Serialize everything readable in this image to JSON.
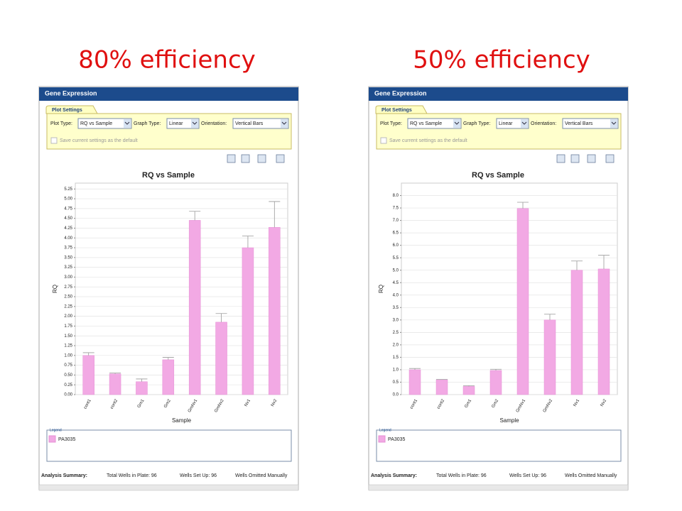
{
  "headings": [
    "80% efficiency",
    "50% efficiency"
  ],
  "panels": [
    {
      "window_title": "Gene Expression",
      "tab": "Plot Settings",
      "plot_type_label": "Plot Type:",
      "plot_type": "RQ vs Sample",
      "graph_type_label": "Graph Type:",
      "graph_type": "Linear",
      "orientation_label": "Orientation:",
      "orientation": "Vertical Bars",
      "save_default": "Save current settings as the default",
      "legend_title": "Legend",
      "summary": [
        "Analysis Summary:",
        "Total Wells in Plate: 96",
        "Wells Set Up: 96",
        "Wells Omitted Manually"
      ]
    },
    {
      "window_title": "Gene Expression",
      "tab": "Plot Settings",
      "plot_type_label": "Plot Type:",
      "plot_type": "RQ vs Sample",
      "graph_type_label": "Graph Type:",
      "graph_type": "Linear",
      "orientation_label": "Orientation:",
      "orientation": "Vertical Bars",
      "save_default": "Save current settings as the default",
      "legend_title": "Legend",
      "summary": [
        "Analysis Summary:",
        "Total Wells in Plate: 96",
        "Wells Set Up: 96",
        "Wells Omitted Manually"
      ]
    }
  ],
  "chart_data": [
    {
      "type": "bar",
      "title": "RQ vs Sample",
      "x_label": "Sample",
      "y_label": "RQ",
      "categories": [
        "cont1",
        "cont2",
        "Gm1",
        "Gm2",
        "GmNv1",
        "GmNv2",
        "Nv1",
        "Nv2"
      ],
      "series": [
        {
          "name": "PA3035",
          "color": "#f2a9e4",
          "values": [
            1.0,
            0.53,
            0.33,
            0.89,
            4.45,
            1.85,
            3.75,
            4.27
          ],
          "errors": [
            0.07,
            0.02,
            0.07,
            0.06,
            0.23,
            0.22,
            0.3,
            0.66
          ]
        }
      ],
      "ylim": [
        0,
        5.4
      ],
      "yticks": [
        {
          "value": 0,
          "label": "0.00"
        },
        {
          "value": 0.25,
          "label": "0.25"
        },
        {
          "value": 0.5,
          "label": "0.50"
        },
        {
          "value": 0.75,
          "label": "0.75"
        },
        {
          "value": 1,
          "label": "1.00"
        },
        {
          "value": 1.25,
          "label": "1.25"
        },
        {
          "value": 1.5,
          "label": "1.50"
        },
        {
          "value": 1.75,
          "label": "1.75"
        },
        {
          "value": 2,
          "label": "2.00"
        },
        {
          "value": 2.25,
          "label": "2.25"
        },
        {
          "value": 2.5,
          "label": "2.50"
        },
        {
          "value": 2.75,
          "label": "2.75"
        },
        {
          "value": 3,
          "label": "3.00"
        },
        {
          "value": 3.25,
          "label": "3.25"
        },
        {
          "value": 3.5,
          "label": "3.50"
        },
        {
          "value": 3.75,
          "label": "3.75"
        },
        {
          "value": 4,
          "label": "4.00"
        },
        {
          "value": 4.25,
          "label": "4.25"
        },
        {
          "value": 4.5,
          "label": "4.50"
        },
        {
          "value": 4.75,
          "label": "4.75"
        },
        {
          "value": 5,
          "label": "5.00"
        },
        {
          "value": 5.25,
          "label": "5.25"
        }
      ],
      "grid": true
    },
    {
      "type": "bar",
      "title": "RQ vs Sample",
      "x_label": "Sample",
      "y_label": "RQ",
      "categories": [
        "cont1",
        "cont2",
        "Gm1",
        "Gm2",
        "GmNv1",
        "GmNv2",
        "Nv1",
        "Nv2"
      ],
      "series": [
        {
          "name": "PA3035",
          "color": "#f2a9e4",
          "values": [
            1.0,
            0.6,
            0.33,
            0.97,
            7.48,
            3.0,
            5.0,
            5.05
          ],
          "errors": [
            0.05,
            0.01,
            0.03,
            0.05,
            0.25,
            0.23,
            0.37,
            0.55
          ]
        }
      ],
      "ylim": [
        0,
        8.5
      ],
      "yticks": [
        {
          "value": 0,
          "label": "0.0"
        },
        0.5,
        {
          "value": 1,
          "label": "1.0"
        },
        1.5,
        {
          "value": 2,
          "label": "2.0"
        },
        2.5,
        {
          "value": 3,
          "label": "3.0"
        },
        3.5,
        {
          "value": 4,
          "label": "4.0"
        },
        4.5,
        {
          "value": 5,
          "label": "5.0"
        },
        5.5,
        {
          "value": 6,
          "label": "6.0"
        },
        6.5,
        {
          "value": 7,
          "label": "7.0"
        },
        7.5,
        {
          "value": 8,
          "label": "8.0"
        }
      ],
      "grid": true
    }
  ]
}
